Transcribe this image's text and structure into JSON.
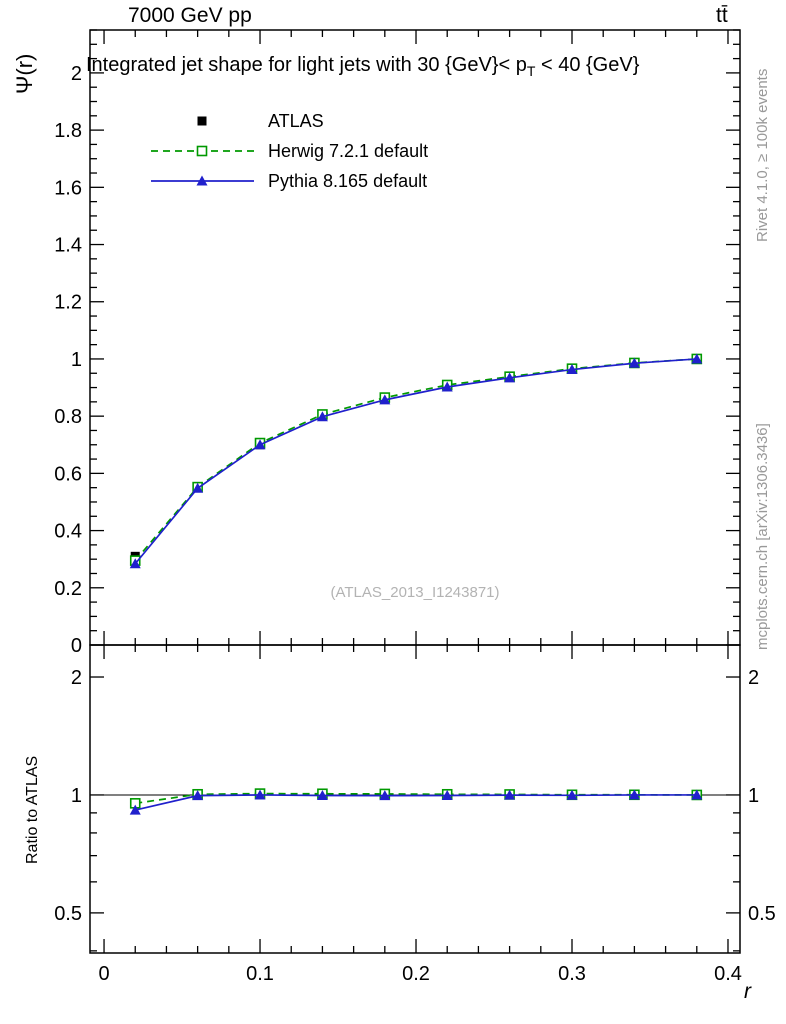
{
  "header": {
    "left_title": "7000 GeV pp",
    "right_title": "tt̄"
  },
  "right_margin": {
    "top_text": "Rivet 4.1.0, ≥ 100k events",
    "bottom_text": "mcplots.cern.ch [arXiv:1306.3436]"
  },
  "chart_data": {
    "type": "line",
    "title": "Integrated jet shape for light jets with 30 {GeV}< pT < 40 {GeV}",
    "title_parts": {
      "prefix": "Integrated jet shape for light jets with 30 {GeV}< p",
      "sub": "T",
      "suffix": " < 40 {GeV}"
    },
    "xlabel": "r",
    "ylabel": "Ψ(r)",
    "ratio_ylabel": "Ratio to ATLAS",
    "watermark": "(ATLAS_2013_I1243871)",
    "legend_position": "top-left",
    "x": [
      0.02,
      0.06,
      0.1,
      0.14,
      0.18,
      0.22,
      0.26,
      0.3,
      0.34,
      0.38
    ],
    "series": [
      {
        "name": "ATLAS",
        "color": "#000000",
        "marker": "square-filled",
        "line": "none",
        "values": [
          0.31,
          0.55,
          0.7,
          0.8,
          0.86,
          0.905,
          0.935,
          0.965,
          0.985,
          1.0
        ]
      },
      {
        "name": "Herwig 7.2.1 default",
        "color": "#009900",
        "marker": "square-open",
        "line": "dashed",
        "values": [
          0.295,
          0.552,
          0.706,
          0.806,
          0.865,
          0.909,
          0.938,
          0.966,
          0.986,
          1.0
        ]
      },
      {
        "name": "Pythia 8.165 default",
        "color": "#2020cc",
        "marker": "triangle-filled",
        "line": "solid",
        "values": [
          0.284,
          0.548,
          0.7,
          0.798,
          0.857,
          0.902,
          0.934,
          0.963,
          0.985,
          1.0
        ]
      }
    ],
    "ratio_series": [
      {
        "name": "Herwig 7.2.1 default",
        "values": [
          0.952,
          1.004,
          1.008,
          1.007,
          1.006,
          1.004,
          1.003,
          1.001,
          1.001,
          1.0
        ]
      },
      {
        "name": "Pythia 8.165 default",
        "values": [
          0.915,
          0.996,
          1.0,
          0.997,
          0.996,
          0.997,
          0.999,
          0.998,
          1.0,
          1.0
        ]
      }
    ],
    "x_axis": {
      "min": -0.009,
      "max": 0.4077,
      "ticks": [
        0,
        0.1,
        0.2,
        0.3,
        0.4
      ],
      "minor_step": 0.02
    },
    "y_axis": {
      "min": 0,
      "max": 2.15,
      "ticks": [
        0,
        0.2,
        0.4,
        0.6,
        0.8,
        1,
        1.2,
        1.4,
        1.6,
        1.8,
        2
      ],
      "minor_step": 0.05
    },
    "ratio_axis": {
      "scale": "log",
      "min": 0.395,
      "max": 2.414,
      "ticks": [
        0.5,
        1,
        2
      ],
      "minor_ticks": [
        0.4,
        0.6,
        0.7,
        0.8,
        0.9
      ]
    }
  }
}
